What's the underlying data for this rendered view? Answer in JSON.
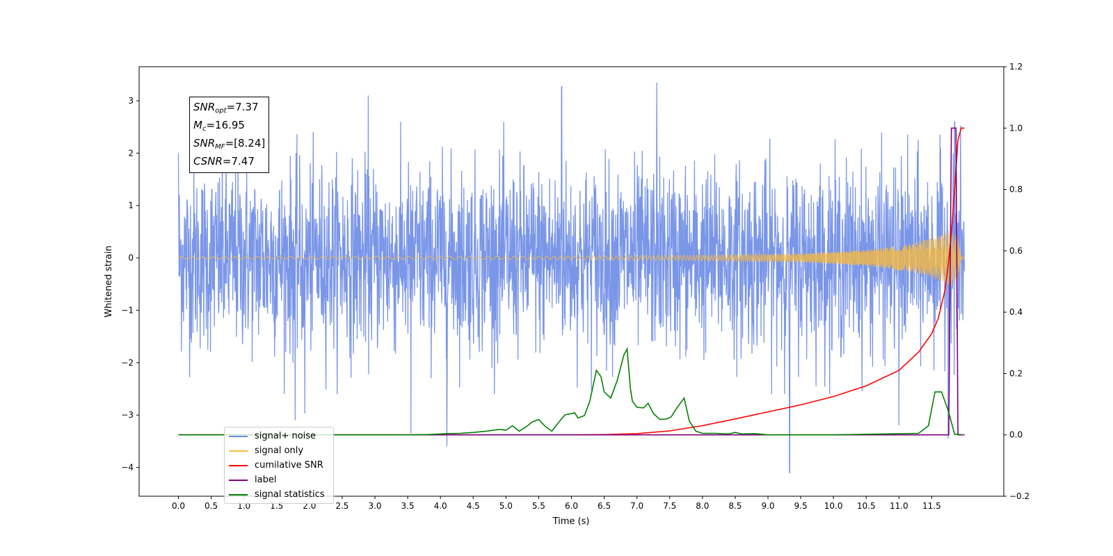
{
  "chart_data": {
    "type": "line",
    "title": "",
    "xlabel": "Time (s)",
    "ylabel": "Whitened strain",
    "xlim": [
      -0.6,
      12.6
    ],
    "ylim": [
      -4.55,
      3.65
    ],
    "y2lim": [
      -0.2,
      1.2
    ],
    "grid": false,
    "legend_placement": "lower-left",
    "x_ticks": [
      "0.0",
      "0.5",
      "1.0",
      "1.5",
      "2.0",
      "2.5",
      "3.0",
      "3.5",
      "4.0",
      "4.5",
      "5.0",
      "5.5",
      "6.0",
      "6.5",
      "7.0",
      "7.5",
      "8.0",
      "8.5",
      "9.0",
      "9.5",
      "10.0",
      "10.5",
      "11.0",
      "11.5"
    ],
    "y_ticks": [
      "3",
      "2",
      "1",
      "0",
      "−1",
      "−2",
      "−3",
      "−4"
    ],
    "y2_ticks": [
      "1.2",
      "1.0",
      "0.8",
      "0.6",
      "0.4",
      "0.2",
      "0.0",
      "−0.2"
    ],
    "annotation": [
      {
        "sym": "SNR",
        "sub": "opt",
        "value": "=7.37"
      },
      {
        "sym": "M",
        "sub": "c",
        "value": "=16.95"
      },
      {
        "sym": "SNR",
        "sub": "MF",
        "value": "=[8.24]"
      },
      {
        "sym": "CSNR",
        "sub": "",
        "value": "=7.47"
      }
    ],
    "series": [
      {
        "name": "signal+ noise",
        "color": "#6b8be6",
        "axis": "left",
        "noise_envelope": {
          "x_range": [
            0.0,
            12.0
          ],
          "typical_amplitude": 1.4,
          "max": 3.35,
          "min": -4.1
        },
        "peaks": [
          [
            0.0,
            2.0
          ],
          [
            2.9,
            3.1
          ],
          [
            5.85,
            3.27
          ],
          [
            7.3,
            3.35
          ],
          [
            11.85,
            2.6
          ]
        ],
        "troughs": [
          [
            1.78,
            -3.1
          ],
          [
            1.93,
            -2.97
          ],
          [
            3.55,
            -3.35
          ],
          [
            4.1,
            -3.6
          ],
          [
            9.33,
            -4.1
          ],
          [
            11.0,
            -3.2
          ],
          [
            11.75,
            -3.45
          ]
        ]
      },
      {
        "name": "signal only",
        "color": "#f5b942",
        "axis": "left",
        "envelope": [
          [
            0.0,
            0.02
          ],
          [
            5.0,
            0.03
          ],
          [
            8.0,
            0.05
          ],
          [
            9.5,
            0.08
          ],
          [
            10.5,
            0.15
          ],
          [
            11.2,
            0.27
          ],
          [
            11.6,
            0.42
          ],
          [
            11.8,
            0.55
          ],
          [
            11.95,
            0.35
          ],
          [
            12.0,
            0.0
          ]
        ]
      },
      {
        "name": "cumilative SNR",
        "color": "#ff0000",
        "axis": "right",
        "x": [
          0.0,
          6.0,
          6.5,
          7.0,
          7.5,
          8.0,
          8.5,
          9.0,
          9.5,
          10.0,
          10.5,
          11.0,
          11.3,
          11.5,
          11.6,
          11.7,
          11.75,
          11.8,
          11.85,
          11.9,
          11.95,
          12.0
        ],
        "y": [
          0.0,
          0.0,
          0.001,
          0.004,
          0.013,
          0.03,
          0.052,
          0.075,
          0.098,
          0.125,
          0.16,
          0.21,
          0.27,
          0.33,
          0.38,
          0.47,
          0.55,
          0.66,
          0.8,
          0.96,
          1.0,
          1.0
        ]
      },
      {
        "name": "label",
        "color": "#800080",
        "axis": "right",
        "x": [
          0.0,
          11.76,
          11.8,
          11.87,
          11.9,
          12.0
        ],
        "y": [
          0.0,
          0.0,
          1.0,
          1.0,
          0.0,
          0.0
        ]
      },
      {
        "name": "signal statistics",
        "color": "#008000",
        "axis": "right",
        "x": [
          0.0,
          2.0,
          3.0,
          3.5,
          3.8,
          4.0,
          4.1,
          4.3,
          4.5,
          4.7,
          4.9,
          5.0,
          5.1,
          5.2,
          5.3,
          5.4,
          5.5,
          5.6,
          5.7,
          5.8,
          5.9,
          5.97,
          6.05,
          6.1,
          6.2,
          6.28,
          6.38,
          6.45,
          6.5,
          6.6,
          6.7,
          6.8,
          6.85,
          6.9,
          6.93,
          7.0,
          7.1,
          7.17,
          7.25,
          7.35,
          7.45,
          7.52,
          7.6,
          7.72,
          7.8,
          7.9,
          8.0,
          8.2,
          8.4,
          8.5,
          8.6,
          8.8,
          9.0,
          10.0,
          11.3,
          11.45,
          11.55,
          11.65,
          11.75,
          11.85,
          11.95
        ],
        "y": [
          0.0,
          0.0,
          0.0,
          0.0,
          0.001,
          0.003,
          0.004,
          0.005,
          0.008,
          0.012,
          0.018,
          0.015,
          0.03,
          0.012,
          0.025,
          0.042,
          0.05,
          0.028,
          0.012,
          0.04,
          0.065,
          0.068,
          0.072,
          0.055,
          0.063,
          0.11,
          0.21,
          0.19,
          0.14,
          0.12,
          0.178,
          0.26,
          0.28,
          0.15,
          0.11,
          0.09,
          0.088,
          0.103,
          0.07,
          0.05,
          0.052,
          0.058,
          0.085,
          0.12,
          0.045,
          0.012,
          0.005,
          0.005,
          0.003,
          0.008,
          0.003,
          0.004,
          0.0,
          0.0,
          0.005,
          0.03,
          0.14,
          0.14,
          0.08,
          0.002,
          0.001
        ]
      }
    ]
  }
}
